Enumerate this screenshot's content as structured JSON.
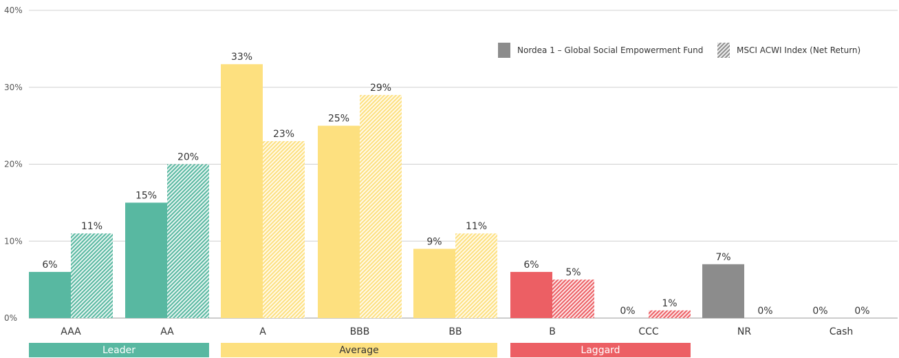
{
  "chart_data": {
    "type": "bar",
    "categories": [
      "AAA",
      "AA",
      "A",
      "BBB",
      "BB",
      "B",
      "CCC",
      "NR",
      "Cash"
    ],
    "series": [
      {
        "name": "Nordea 1 – Global Social Empowerment Fund",
        "values": [
          6,
          15,
          33,
          25,
          9,
          6,
          0,
          7,
          0
        ],
        "labels": [
          "6%",
          "15%",
          "33%",
          "25%",
          "9%",
          "6%",
          "0%",
          "7%",
          "0%"
        ],
        "pattern": "solid"
      },
      {
        "name": "MSCI ACWI Index (Net Return)",
        "values": [
          11,
          20,
          23,
          29,
          11,
          5,
          1,
          0,
          0
        ],
        "labels": [
          "11%",
          "20%",
          "23%",
          "29%",
          "11%",
          "5%",
          "1%",
          "0%",
          "0%"
        ],
        "pattern": "hatched"
      }
    ],
    "category_colors": [
      "#58b8a1",
      "#58b8a1",
      "#fde07f",
      "#fde07f",
      "#fde07f",
      "#ec5f64",
      "#ec5f64",
      "#8c8c8c",
      "#8c8c8c"
    ],
    "ylim": [
      0,
      40
    ],
    "yticks": [
      0,
      10,
      20,
      30,
      40
    ],
    "ytick_labels": [
      "0%",
      "10%",
      "20%",
      "30%",
      "40%"
    ],
    "grid": true,
    "legend_position": "top-right",
    "groups": [
      {
        "label": "Leader",
        "from": 0,
        "to": 1,
        "color": "#58b8a1",
        "text_color": "#ffffff"
      },
      {
        "label": "Average",
        "from": 2,
        "to": 4,
        "color": "#fde07f",
        "text_color": "#333333"
      },
      {
        "label": "Laggard",
        "from": 5,
        "to": 6,
        "color": "#ec5f64",
        "text_color": "#ffffff"
      }
    ]
  }
}
